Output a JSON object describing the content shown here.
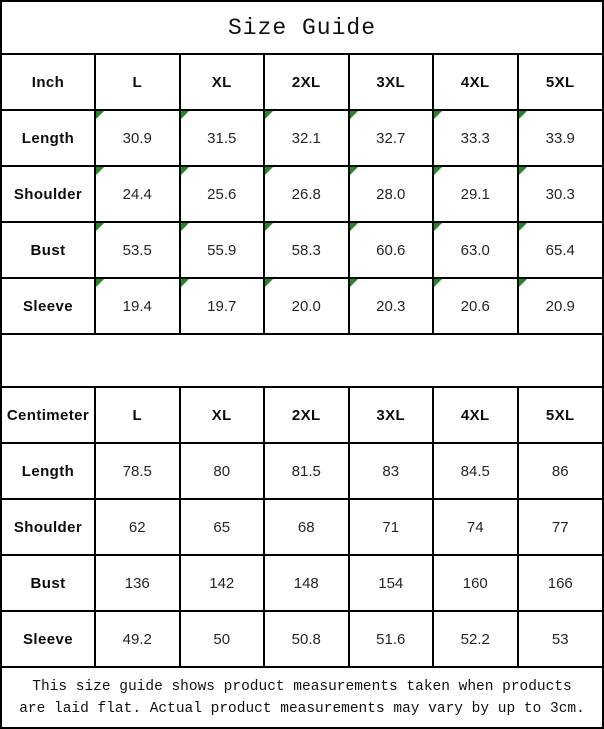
{
  "title": "Size Guide",
  "colors": {
    "border": "#000000",
    "background": "#ffffff",
    "flag_green": "#1f8a1f",
    "text": "#111111"
  },
  "icons": {
    "corner_flag": "green-corner-triangle"
  },
  "inch_table": {
    "unit_label": "Inch",
    "columns": [
      "L",
      "XL",
      "2XL",
      "3XL",
      "4XL",
      "5XL"
    ],
    "rows": [
      {
        "label": "Length",
        "values": [
          "30.9",
          "31.5",
          "32.1",
          "32.7",
          "33.3",
          "33.9"
        ]
      },
      {
        "label": "Shoulder",
        "values": [
          "24.4",
          "25.6",
          "26.8",
          "28.0",
          "29.1",
          "30.3"
        ]
      },
      {
        "label": "Bust",
        "values": [
          "53.5",
          "55.9",
          "58.3",
          "60.6",
          "63.0",
          "65.4"
        ]
      },
      {
        "label": "Sleeve",
        "values": [
          "19.4",
          "19.7",
          "20.0",
          "20.3",
          "20.6",
          "20.9"
        ]
      }
    ]
  },
  "cm_table": {
    "unit_label": "Centimeter",
    "columns": [
      "L",
      "XL",
      "2XL",
      "3XL",
      "4XL",
      "5XL"
    ],
    "rows": [
      {
        "label": "Length",
        "values": [
          "78.5",
          "80",
          "81.5",
          "83",
          "84.5",
          "86"
        ]
      },
      {
        "label": "Shoulder",
        "values": [
          "62",
          "65",
          "68",
          "71",
          "74",
          "77"
        ]
      },
      {
        "label": "Bust",
        "values": [
          "136",
          "142",
          "148",
          "154",
          "160",
          "166"
        ]
      },
      {
        "label": "Sleeve",
        "values": [
          "49.2",
          "50",
          "50.8",
          "51.6",
          "52.2",
          "53"
        ]
      }
    ]
  },
  "footer": {
    "line1": "This size guide shows product measurements taken when products",
    "line2": "are laid flat. Actual product measurements may vary by up to 3cm."
  }
}
